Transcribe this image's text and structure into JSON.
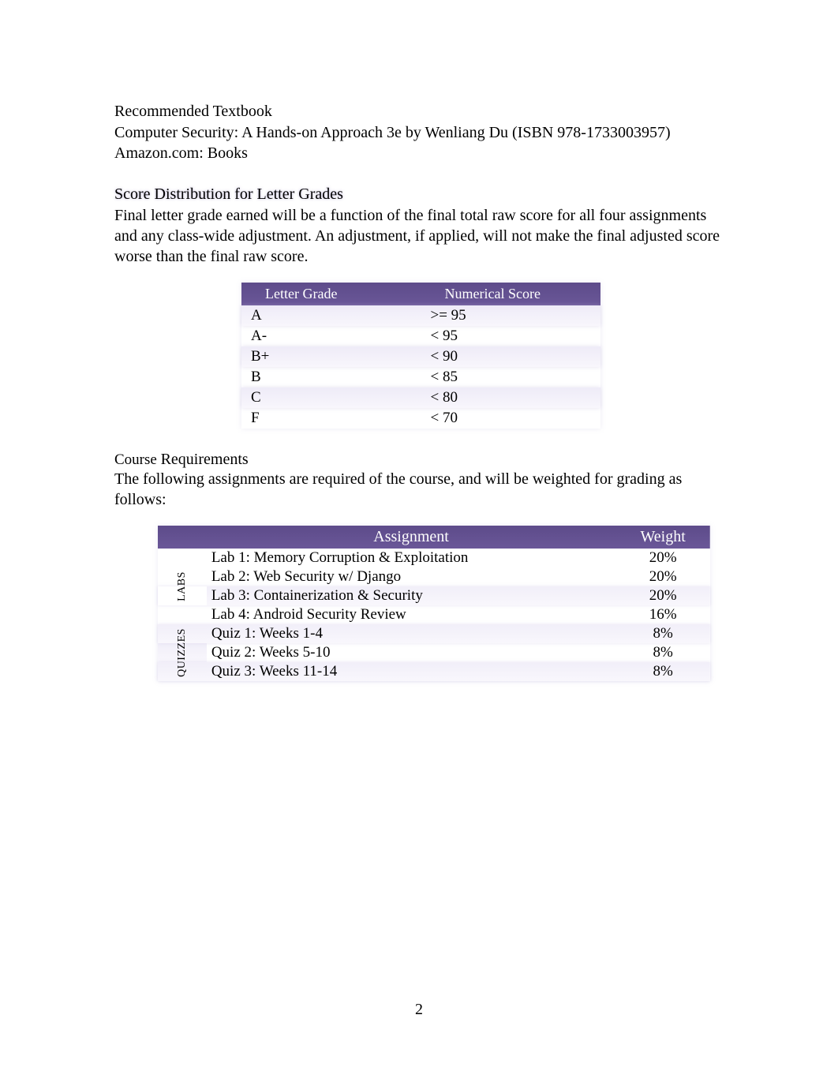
{
  "textbook": {
    "heading": "Recommended Textbook",
    "line1": "Computer Security: A Hands-on Approach 3e by Wenliang Du (ISBN 978-1733003957)",
    "line2": "Amazon.com: Books"
  },
  "score_dist": {
    "heading": "Score  Distribution  for Letter  Grades",
    "body": "Final letter grade earned will be a function of the final total raw score for all four assignments and any class-wide adjustment. An adjustment, if applied, will not make the final adjusted score worse than the final raw score."
  },
  "grade_table": {
    "headers": {
      "letter": "Letter  Grade",
      "score": "Numerical   Score"
    },
    "rows": [
      {
        "letter": "A",
        "score": ">= 95",
        "blur": true
      },
      {
        "letter": "A-",
        "score": "< 95",
        "blur": false
      },
      {
        "letter": "B+",
        "score": "< 90",
        "blur": true
      },
      {
        "letter": "B",
        "score": "< 85",
        "blur": false
      },
      {
        "letter": "C",
        "score": "< 80",
        "blur": true
      },
      {
        "letter": "F",
        "score": "< 70",
        "blur": false
      }
    ]
  },
  "requirements": {
    "heading_a": "Course ",
    "heading_b": "Requirements",
    "body": "The following assignments are required of the course, and will be weighted for grading as follows:"
  },
  "assign_table": {
    "headers": {
      "assignment": "Assignment",
      "weight": "Weight"
    },
    "groups": [
      {
        "label": "LABS",
        "rows": [
          {
            "name": "Lab  1:  Memory  Corruption    & Exploitation",
            "weight": "20%",
            "blur": false
          },
          {
            "name": "Lab 2:  Web Security w/ Django",
            "weight": "20%",
            "blur": false
          },
          {
            "name": "Lab  3:  Containerization     & Security",
            "weight": "20%",
            "blur": true
          },
          {
            "name": "Lab  4:  Android  Security  Review",
            "weight": "16%",
            "blur": false
          }
        ]
      },
      {
        "label": "QUIZZES",
        "rows": [
          {
            "name": "Quiz  1:  Weeks   1-4",
            "weight": "8%",
            "blur": true
          },
          {
            "name": "Quiz  2:  Weeks   5-10",
            "weight": "8%",
            "blur": false
          },
          {
            "name": "Quiz  3:  Weeks   11-14",
            "weight": "8%",
            "blur": true
          }
        ]
      }
    ]
  },
  "page_number": "2",
  "colors": {
    "header_bg": "#5d4b8a",
    "header_text": "#ffffff",
    "body_text": "#000000",
    "page_bg": "#ffffff",
    "blur_tint": "rgba(200,190,230,0.25)"
  }
}
